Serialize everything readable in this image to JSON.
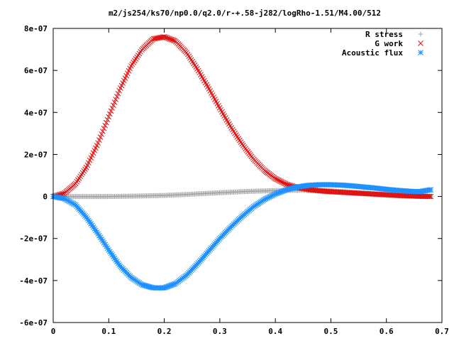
{
  "title": "m2/js254/ks70/np0.0/q2.0/r-+.58-j282/logRho-1.51/M4.00/512",
  "chart_data": {
    "type": "scatter",
    "title": "m2/js254/ks70/np0.0/q2.0/r-+.58-j282/logRho-1.51/M4.00/512",
    "xlabel": "",
    "ylabel": "",
    "xlim": [
      0,
      0.7
    ],
    "ylim": [
      -6e-07,
      8e-07
    ],
    "x_ticks": [
      "0",
      "0.1",
      "0.2",
      "0.3",
      "0.4",
      "0.5",
      "0.6",
      "0.7"
    ],
    "y_ticks": [
      "8e-07",
      "6e-07",
      "4e-07",
      "2e-07",
      "0",
      "-2e-07",
      "-4e-07",
      "-6e-07"
    ],
    "legend_position": "top-right",
    "grid": false,
    "series": [
      {
        "name": "R stress",
        "marker": "plus",
        "color": "#a0a0a0",
        "x": [
          0.0,
          0.05,
          0.1,
          0.15,
          0.2,
          0.25,
          0.3,
          0.35,
          0.4,
          0.45,
          0.5,
          0.55,
          0.6,
          0.65,
          0.68
        ],
        "y": [
          0.0,
          0.0,
          0.0,
          2e-09,
          5e-09,
          1.1e-08,
          1.8e-08,
          2.4e-08,
          2.8e-08,
          3e-08,
          2.7e-08,
          1.8e-08,
          9e-09,
          3e-09,
          1e-09
        ]
      },
      {
        "name": "G work",
        "marker": "cross",
        "color": "#e01010",
        "x": [
          0.0,
          0.02,
          0.04,
          0.06,
          0.08,
          0.1,
          0.12,
          0.14,
          0.16,
          0.18,
          0.2,
          0.22,
          0.24,
          0.26,
          0.28,
          0.3,
          0.32,
          0.34,
          0.36,
          0.38,
          0.4,
          0.42,
          0.44,
          0.46,
          0.48,
          0.5,
          0.52,
          0.54,
          0.56,
          0.58,
          0.6,
          0.62,
          0.64,
          0.66,
          0.68
        ],
        "y": [
          0.0,
          1.5e-08,
          6e-08,
          1.4e-07,
          2.5e-07,
          3.8e-07,
          5.1e-07,
          6.2e-07,
          7e-07,
          7.5e-07,
          7.6e-07,
          7.4e-07,
          6.85e-07,
          6.05e-07,
          5.15e-07,
          4.2e-07,
          3.3e-07,
          2.5e-07,
          1.8e-07,
          1.25e-07,
          8.5e-08,
          5.8e-08,
          4.2e-08,
          3.3e-08,
          2.7e-08,
          2.3e-08,
          2e-08,
          1.7e-08,
          1.4e-08,
          1.1e-08,
          8e-09,
          5e-09,
          3e-09,
          1e-09,
          0.0
        ]
      },
      {
        "name": "Acoustic flux",
        "marker": "star",
        "color": "#1e90ff",
        "x": [
          0.0,
          0.02,
          0.04,
          0.06,
          0.08,
          0.1,
          0.12,
          0.14,
          0.16,
          0.18,
          0.2,
          0.22,
          0.24,
          0.26,
          0.28,
          0.3,
          0.32,
          0.34,
          0.36,
          0.38,
          0.4,
          0.42,
          0.44,
          0.46,
          0.48,
          0.5,
          0.52,
          0.54,
          0.56,
          0.58,
          0.6,
          0.62,
          0.64,
          0.66,
          0.68
        ],
        "y": [
          0.0,
          -1e-08,
          -4e-08,
          -1e-07,
          -1.75e-07,
          -2.55e-07,
          -3.3e-07,
          -3.85e-07,
          -4.2e-07,
          -4.35e-07,
          -4.35e-07,
          -4.15e-07,
          -3.75e-07,
          -3.2e-07,
          -2.6e-07,
          -2e-07,
          -1.45e-07,
          -9.5e-08,
          -5e-08,
          -1.5e-08,
          1.2e-08,
          3.2e-08,
          4.5e-08,
          5.3e-08,
          5.6e-08,
          5.6e-08,
          5.4e-08,
          5e-08,
          4.5e-08,
          4e-08,
          3.4e-08,
          2.9e-08,
          2.5e-08,
          2.3e-08,
          3.2e-08
        ]
      }
    ]
  }
}
